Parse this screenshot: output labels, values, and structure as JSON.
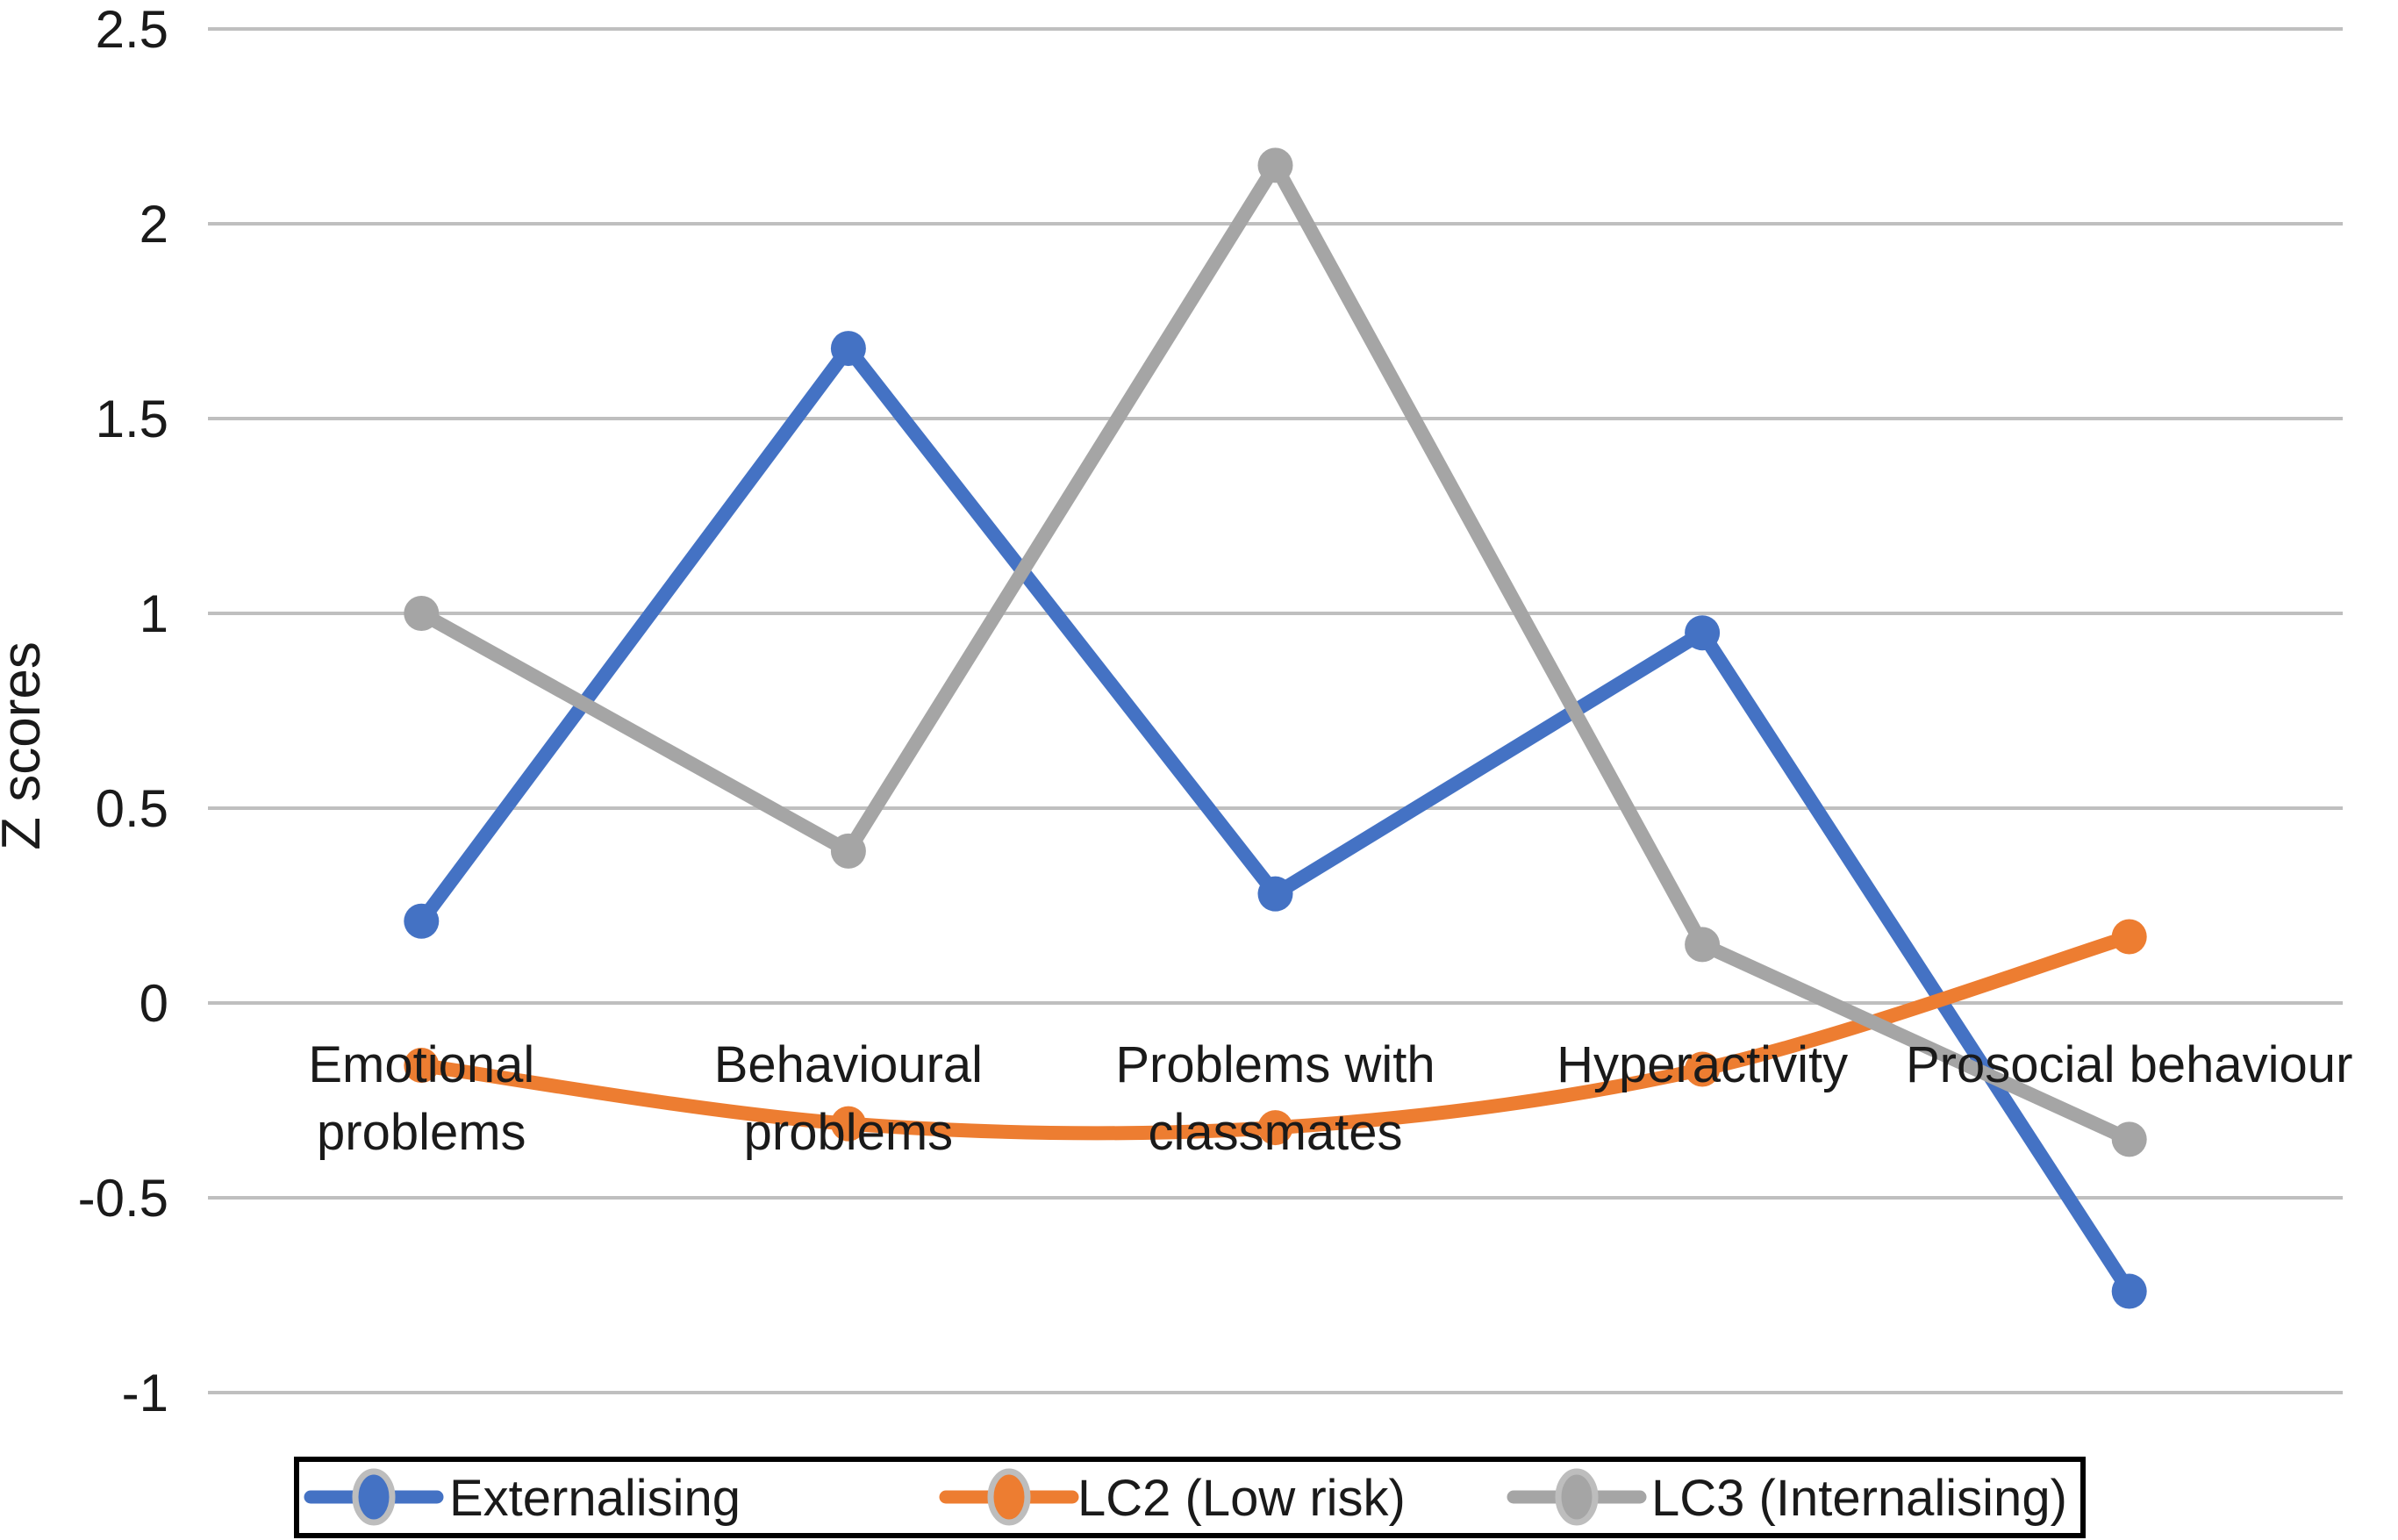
{
  "figure": {
    "background": "#ffffff",
    "text_color": "#1a1a1a"
  },
  "chart_data": {
    "type": "line",
    "title": "",
    "xlabel": "",
    "ylabel": "Z scores",
    "categories": [
      "Emotional problems",
      "Behavioural problems",
      "Problems with classmates",
      "Hyperactivity",
      "Prosocial behaviour"
    ],
    "category_label_lines": [
      [
        "Emotional",
        "problems"
      ],
      [
        "Behavioural",
        "problems"
      ],
      [
        "Problems with",
        "classmates"
      ],
      [
        "Hyperactivity"
      ],
      [
        "Prosocial behaviour"
      ]
    ],
    "series": [
      {
        "name": "Externalising",
        "color": "#4472C4",
        "smooth": false,
        "marker": "circle",
        "values": [
          0.21,
          1.68,
          0.28,
          0.95,
          -0.74
        ]
      },
      {
        "name": "LC2 (Low risk)",
        "color": "#ED7D31",
        "smooth": true,
        "marker": "circle",
        "values": [
          -0.16,
          -0.31,
          -0.32,
          -0.17,
          0.17
        ]
      },
      {
        "name": "LC3 (Internalising)",
        "color": "#A5A5A5",
        "smooth": false,
        "marker": "circle",
        "values": [
          1.0,
          0.39,
          2.15,
          0.15,
          -0.35
        ]
      }
    ],
    "yaxis": {
      "min": -1,
      "max": 2.5,
      "step": 0.5,
      "tick_labels": [
        "2.5",
        "2",
        "1.5",
        "1",
        "0.5",
        "0",
        "-0.5",
        "-1"
      ]
    },
    "ylim": [
      -1,
      2.5
    ],
    "grid": true,
    "grid_color": "#BFBFBF",
    "legend_position": "bottom",
    "legend_border_color": "#000000",
    "legend_marker_ring_color": "#BDBDBD",
    "legend": [
      "Externalising",
      "LC2 (Low risk)",
      "LC3 (Internalising)"
    ]
  }
}
